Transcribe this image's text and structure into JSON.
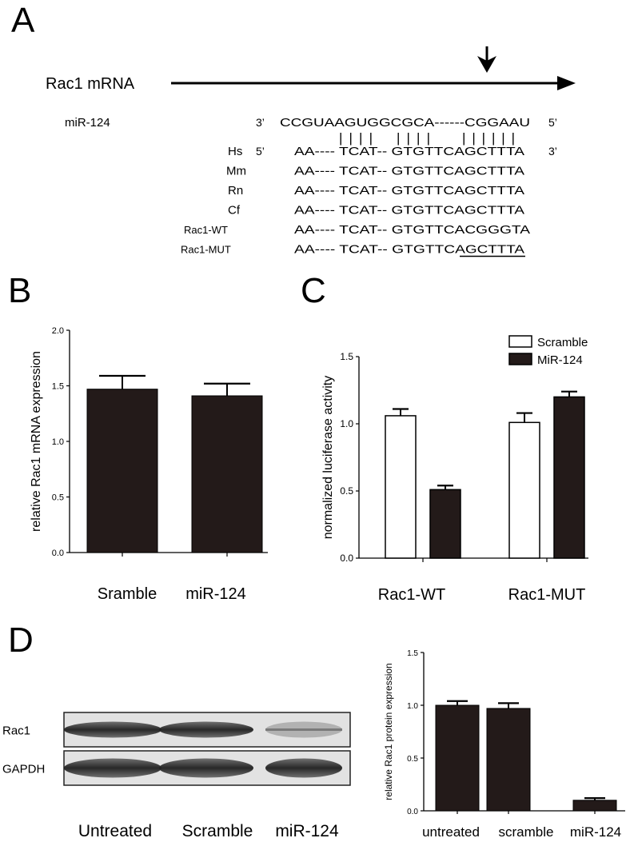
{
  "panels": {
    "a": "A",
    "b": "B",
    "c": "C",
    "d": "D"
  },
  "alignment": {
    "mrna_label": "Rac1 mRNA",
    "mir_label": "miR-124",
    "mir_3prime": "3’",
    "mir_sequence": "CCGUAAGUGGCGCA------CGGAAU",
    "mir_5prime": "5’",
    "pair_bars": [
      "||||",
      "||||",
      "||||||"
    ],
    "species_5prime": "5’",
    "species_3prime": "3’",
    "rows": [
      {
        "label": "Hs",
        "seq": "AA---- TCAT-- GTGTTCAGCTTTA"
      },
      {
        "label": "Mm",
        "seq": "AA---- TCAT-- GTGTTCAGCTTTA"
      },
      {
        "label": "Rn",
        "seq": "AA---- TCAT-- GTGTTCAGCTTTA"
      },
      {
        "label": "Cf",
        "seq": "AA---- TCAT-- GTGTTCAGCTTTA"
      },
      {
        "label": "Rac1-WT",
        "seq": "AA---- TCAT-- GTGTTCACGGGTA"
      },
      {
        "label": "Rac1-MUT",
        "seq_prefix": "AA---- TCAT-- GTGTTCA",
        "seq_underlined": "GCTTTA"
      }
    ]
  },
  "blot": {
    "lanes": [
      "Untreated",
      "Scramble",
      "miR-124"
    ],
    "bands": [
      {
        "label": "Rac1",
        "intensities": [
          1.0,
          1.0,
          0.1
        ]
      },
      {
        "label": "GAPDH",
        "intensities": [
          1.0,
          1.0,
          1.0
        ]
      }
    ]
  },
  "chart_data": [
    {
      "panel": "B",
      "type": "bar",
      "categories": [
        "Sramble",
        "miR-124"
      ],
      "values": [
        1.47,
        1.41
      ],
      "errors": [
        0.12,
        0.11
      ],
      "ylabel": "relative Rac1 mRNA expression",
      "xlabel": "",
      "ylim": [
        0,
        2.0
      ],
      "yticks": [
        "0.0",
        "0.5",
        "1.0",
        "1.5",
        "2.0"
      ],
      "color": "#231a19"
    },
    {
      "panel": "C",
      "type": "bar",
      "categories": [
        "Rac1-WT",
        "Rac1-MUT"
      ],
      "series": [
        {
          "name": "Scramble",
          "values": [
            1.06,
            1.01
          ],
          "errors": [
            0.05,
            0.07
          ],
          "fill": "#ffffff"
        },
        {
          "name": "MiR-124",
          "values": [
            0.51,
            1.2
          ],
          "errors": [
            0.03,
            0.04
          ],
          "fill": "#231a19"
        }
      ],
      "ylabel": "normalized luciferase activity",
      "xlabel": "",
      "ylim": [
        0,
        1.5
      ],
      "yticks": [
        "0.0",
        "0.5",
        "1.0",
        "1.5"
      ],
      "legend": "top-right"
    },
    {
      "panel": "D",
      "type": "bar",
      "categories": [
        "untreated",
        "scramble",
        "miR-124"
      ],
      "values": [
        1.0,
        0.97,
        0.1
      ],
      "errors": [
        0.04,
        0.05,
        0.02
      ],
      "ylabel": "relative Rac1 protein expression",
      "xlabel": "",
      "ylim": [
        0,
        1.5
      ],
      "yticks": [
        "0.0",
        "0.5",
        "1.0",
        "1.5"
      ],
      "color": "#231a19"
    }
  ]
}
